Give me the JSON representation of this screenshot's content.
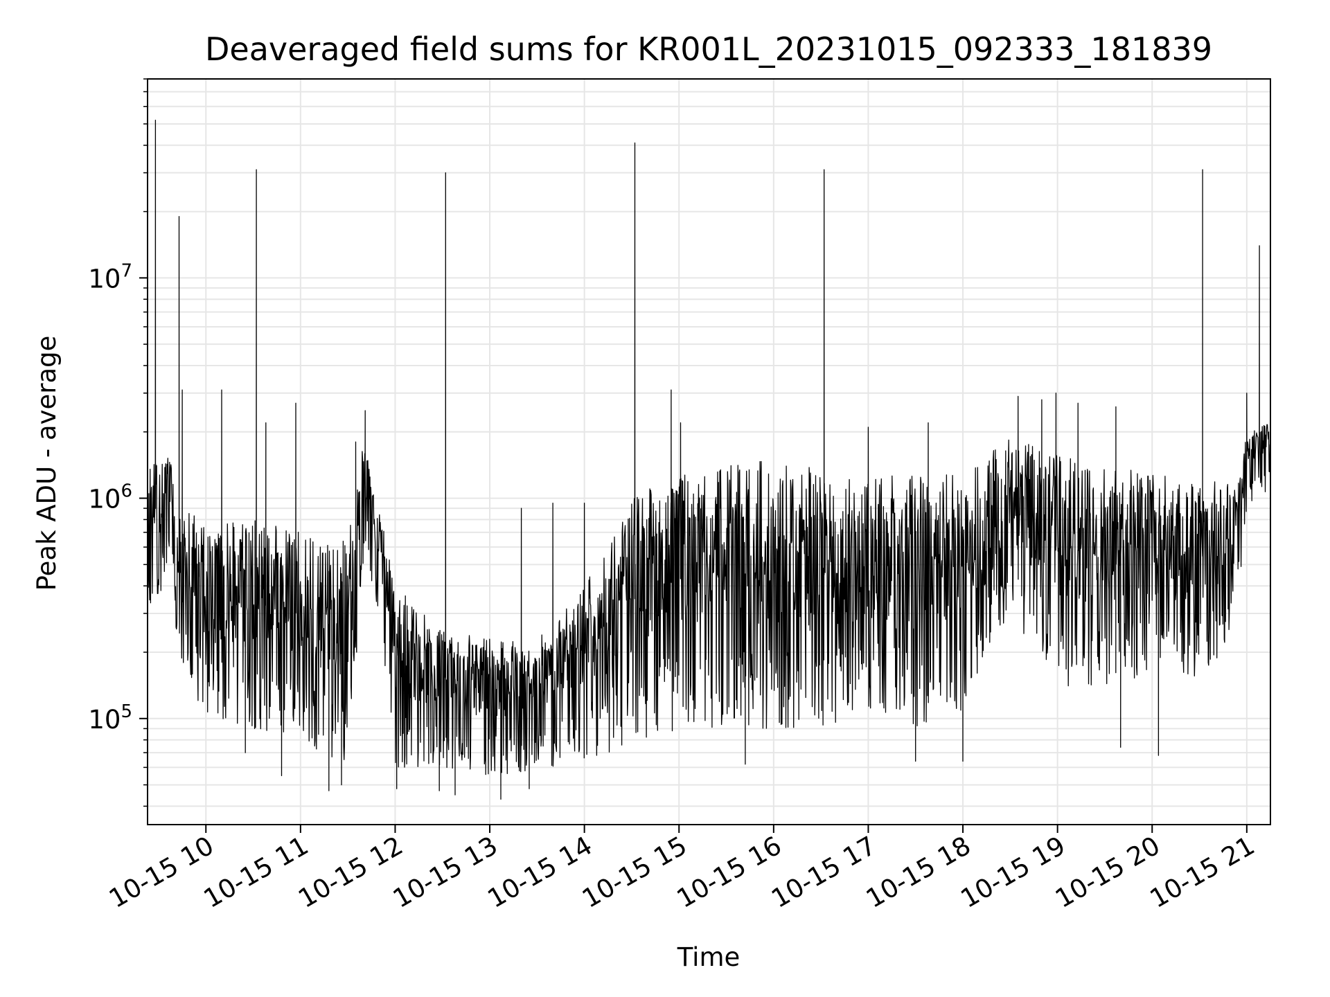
{
  "chart_data": {
    "type": "line",
    "title": "Deaveraged field sums for KR001L_20231015_092333_181839",
    "xlabel": "Time",
    "ylabel": "Peak ADU - average",
    "yscale": "log",
    "grid": true,
    "line_color": "#000000",
    "grid_color": "#e6e6e6",
    "xlim": [
      "2023-10-15 09:23",
      "2023-10-15 21:15"
    ],
    "ylim": [
      33000,
      80000000
    ],
    "x_ticks": [
      {
        "value": "2023-10-15 10:00",
        "label": "10-15 10"
      },
      {
        "value": "2023-10-15 11:00",
        "label": "10-15 11"
      },
      {
        "value": "2023-10-15 12:00",
        "label": "10-15 12"
      },
      {
        "value": "2023-10-15 13:00",
        "label": "10-15 13"
      },
      {
        "value": "2023-10-15 14:00",
        "label": "10-15 14"
      },
      {
        "value": "2023-10-15 15:00",
        "label": "10-15 15"
      },
      {
        "value": "2023-10-15 16:00",
        "label": "10-15 16"
      },
      {
        "value": "2023-10-15 17:00",
        "label": "10-15 17"
      },
      {
        "value": "2023-10-15 18:00",
        "label": "10-15 18"
      },
      {
        "value": "2023-10-15 19:00",
        "label": "10-15 19"
      },
      {
        "value": "2023-10-15 20:00",
        "label": "10-15 20"
      },
      {
        "value": "2023-10-15 21:00",
        "label": "10-15 21"
      }
    ],
    "y_ticks": [
      {
        "value": 100000,
        "base": "10",
        "exp": "5"
      },
      {
        "value": 1000000,
        "base": "10",
        "exp": "6"
      },
      {
        "value": 10000000,
        "base": "10",
        "exp": "7"
      }
    ],
    "series": [
      {
        "name": "",
        "envelope": [
          {
            "t": "2023-10-15 09:23",
            "low": 280000,
            "high": 1400000
          },
          {
            "t": "2023-10-15 09:38",
            "low": 480000,
            "high": 1800000
          },
          {
            "t": "2023-10-15 09:43",
            "low": 160000,
            "high": 900000
          },
          {
            "t": "2023-10-15 10:00",
            "low": 100000,
            "high": 800000
          },
          {
            "t": "2023-10-15 10:30",
            "low": 90000,
            "high": 800000
          },
          {
            "t": "2023-10-15 11:00",
            "low": 80000,
            "high": 700000
          },
          {
            "t": "2023-10-15 11:30",
            "low": 60000,
            "high": 650000
          },
          {
            "t": "2023-10-15 11:40",
            "low": 500000,
            "high": 2000000
          },
          {
            "t": "2023-10-15 11:50",
            "low": 300000,
            "high": 900000
          },
          {
            "t": "2023-10-15 12:00",
            "low": 60000,
            "high": 400000
          },
          {
            "t": "2023-10-15 12:30",
            "low": 60000,
            "high": 250000
          },
          {
            "t": "2023-10-15 13:00",
            "low": 55000,
            "high": 230000
          },
          {
            "t": "2023-10-15 13:30",
            "low": 58000,
            "high": 230000
          },
          {
            "t": "2023-10-15 14:00",
            "low": 65000,
            "high": 400000
          },
          {
            "t": "2023-10-15 14:30",
            "low": 75000,
            "high": 1000000
          },
          {
            "t": "2023-10-15 15:00",
            "low": 90000,
            "high": 1300000
          },
          {
            "t": "2023-10-15 15:30",
            "low": 90000,
            "high": 1400000
          },
          {
            "t": "2023-10-15 16:00",
            "low": 90000,
            "high": 1500000
          },
          {
            "t": "2023-10-15 16:30",
            "low": 90000,
            "high": 1400000
          },
          {
            "t": "2023-10-15 17:00",
            "low": 110000,
            "high": 1300000
          },
          {
            "t": "2023-10-15 17:30",
            "low": 90000,
            "high": 1300000
          },
          {
            "t": "2023-10-15 18:00",
            "low": 110000,
            "high": 1300000
          },
          {
            "t": "2023-10-15 18:30",
            "low": 300000,
            "high": 1900000
          },
          {
            "t": "2023-10-15 19:00",
            "low": 140000,
            "high": 1600000
          },
          {
            "t": "2023-10-15 19:30",
            "low": 140000,
            "high": 1400000
          },
          {
            "t": "2023-10-15 20:00",
            "low": 150000,
            "high": 1300000
          },
          {
            "t": "2023-10-15 20:30",
            "low": 150000,
            "high": 1200000
          },
          {
            "t": "2023-10-15 20:55",
            "low": 250000,
            "high": 1200000
          },
          {
            "t": "2023-10-15 21:00",
            "low": 900000,
            "high": 2000000
          },
          {
            "t": "2023-10-15 21:15",
            "low": 1100000,
            "high": 2200000
          }
        ],
        "spikes": [
          {
            "t": "2023-10-15 09:28",
            "value": 52000000
          },
          {
            "t": "2023-10-15 09:43",
            "value": 19000000
          },
          {
            "t": "2023-10-15 09:45",
            "value": 3100000
          },
          {
            "t": "2023-10-15 10:10",
            "value": 3100000
          },
          {
            "t": "2023-10-15 10:32",
            "value": 31000000
          },
          {
            "t": "2023-10-15 10:38",
            "value": 2200000
          },
          {
            "t": "2023-10-15 10:57",
            "value": 2700000
          },
          {
            "t": "2023-10-15 11:35",
            "value": 1800000
          },
          {
            "t": "2023-10-15 11:41",
            "value": 2500000
          },
          {
            "t": "2023-10-15 12:32",
            "value": 30000000
          },
          {
            "t": "2023-10-15 13:20",
            "value": 900000
          },
          {
            "t": "2023-10-15 13:40",
            "value": 950000
          },
          {
            "t": "2023-10-15 14:00",
            "value": 950000
          },
          {
            "t": "2023-10-15 14:32",
            "value": 41000000
          },
          {
            "t": "2023-10-15 14:55",
            "value": 3100000
          },
          {
            "t": "2023-10-15 15:01",
            "value": 2200000
          },
          {
            "t": "2023-10-15 16:32",
            "value": 31000000
          },
          {
            "t": "2023-10-15 17:00",
            "value": 2100000
          },
          {
            "t": "2023-10-15 17:38",
            "value": 2200000
          },
          {
            "t": "2023-10-15 18:35",
            "value": 2900000
          },
          {
            "t": "2023-10-15 18:50",
            "value": 2800000
          },
          {
            "t": "2023-10-15 18:59",
            "value": 3000000
          },
          {
            "t": "2023-10-15 19:13",
            "value": 2700000
          },
          {
            "t": "2023-10-15 19:37",
            "value": 2600000
          },
          {
            "t": "2023-10-15 20:32",
            "value": 31000000
          },
          {
            "t": "2023-10-15 21:00",
            "value": 3000000
          },
          {
            "t": "2023-10-15 21:08",
            "value": 14000000
          }
        ],
        "dips": [
          {
            "t": "2023-10-15 10:25",
            "value": 70000
          },
          {
            "t": "2023-10-15 10:48",
            "value": 55000
          },
          {
            "t": "2023-10-15 11:18",
            "value": 47000
          },
          {
            "t": "2023-10-15 11:26",
            "value": 50000
          },
          {
            "t": "2023-10-15 12:01",
            "value": 48000
          },
          {
            "t": "2023-10-15 12:28",
            "value": 47000
          },
          {
            "t": "2023-10-15 12:38",
            "value": 45000
          },
          {
            "t": "2023-10-15 13:07",
            "value": 43000
          },
          {
            "t": "2023-10-15 13:25",
            "value": 48000
          },
          {
            "t": "2023-10-15 15:42",
            "value": 62000
          },
          {
            "t": "2023-10-15 17:30",
            "value": 64000
          },
          {
            "t": "2023-10-15 18:00",
            "value": 64000
          },
          {
            "t": "2023-10-15 19:40",
            "value": 74000
          },
          {
            "t": "2023-10-15 20:04",
            "value": 68000
          }
        ]
      }
    ]
  }
}
